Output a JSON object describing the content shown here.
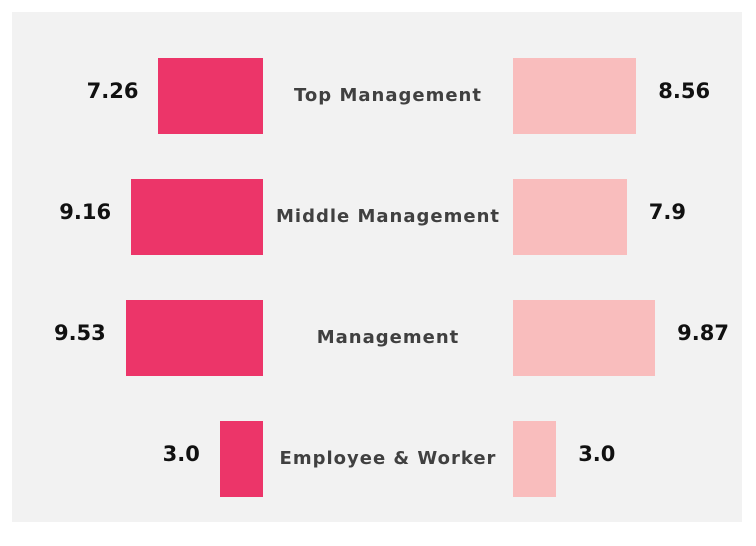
{
  "chart_data": {
    "type": "butterfly",
    "categories": [
      "Top Management",
      "Middle Management",
      "Management",
      "Employee & Worker"
    ],
    "series": [
      {
        "color": "#ec3569",
        "values": [
          7.26,
          9.16,
          9.53,
          3.0
        ],
        "value_labels": [
          "7.26",
          "9.16",
          "9.53",
          "3.0"
        ]
      },
      {
        "color": "#f9bdbd",
        "values": [
          8.56,
          7.9,
          9.87,
          3.0
        ],
        "value_labels": [
          "8.56",
          "7.9",
          "9.87",
          "3.0"
        ]
      }
    ]
  }
}
